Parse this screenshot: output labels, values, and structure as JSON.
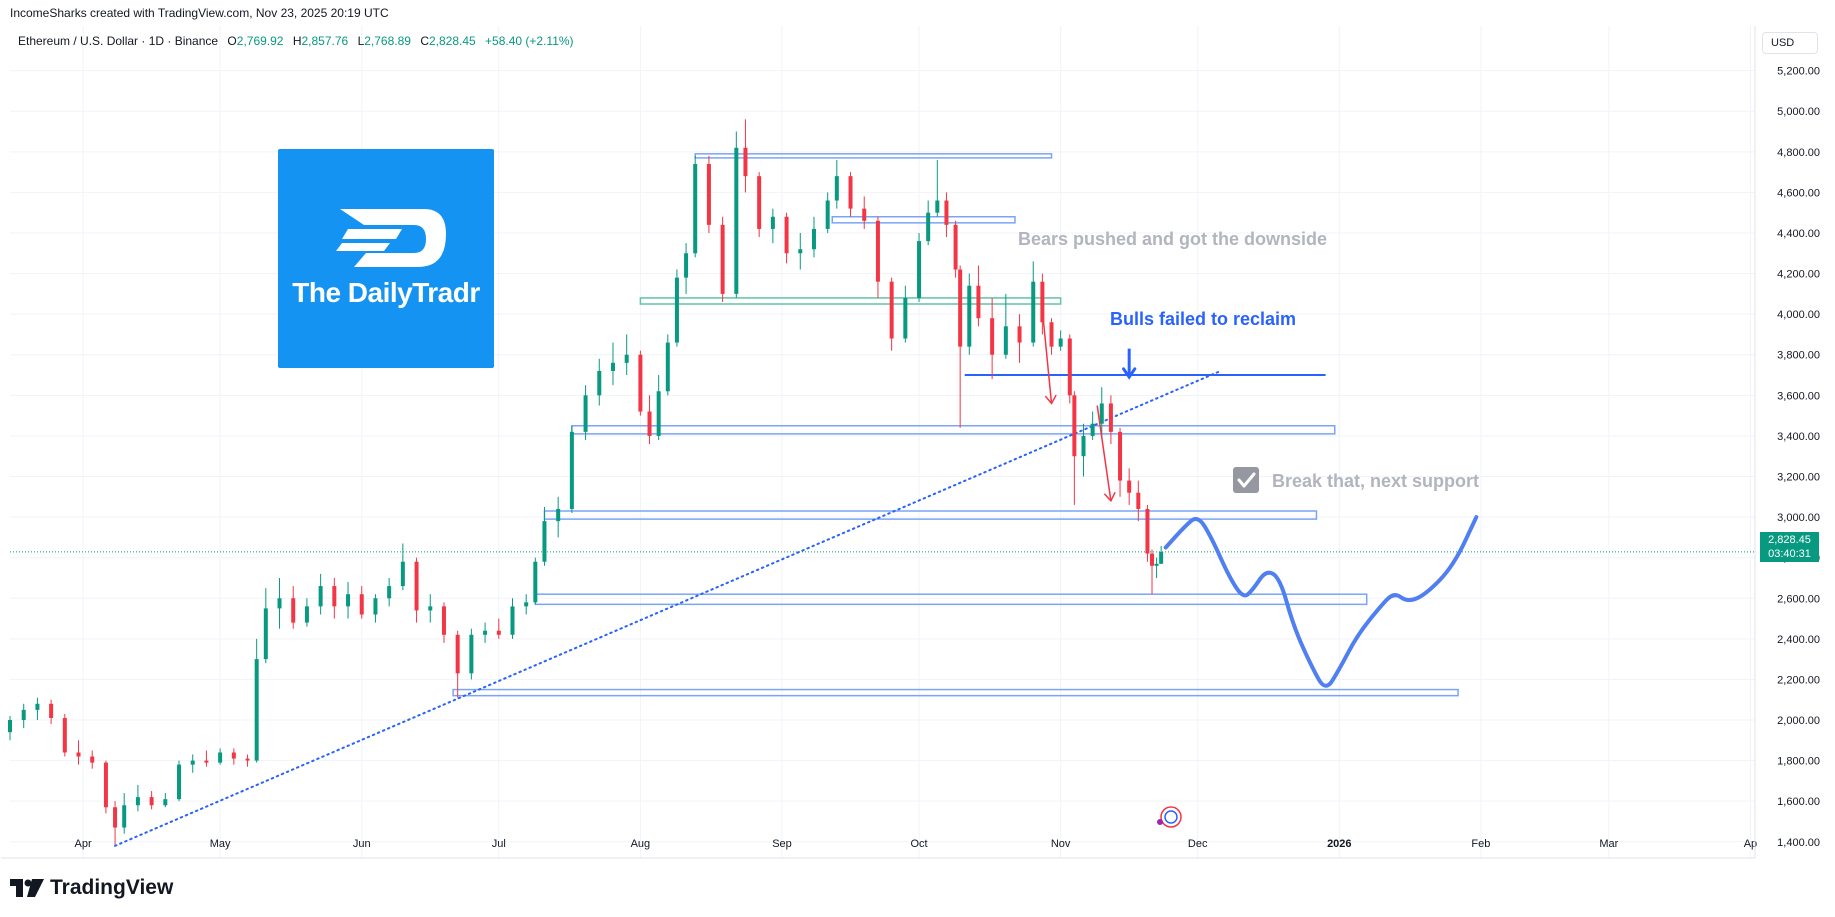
{
  "header": {
    "credit": "IncomeSharks created with TradingView.com, Nov 23, 2025 20:19 UTC"
  },
  "legend": {
    "symbol": "Ethereum / U.S. Dollar · 1D · Binance",
    "open_label": "O",
    "open": "2,769.92",
    "high_label": "H",
    "high": "2,857.76",
    "low_label": "L",
    "low": "2,768.89",
    "close_label": "C",
    "close": "2,828.45",
    "change": "+58.40 (+2.11%)"
  },
  "currency_button": "USD",
  "price_tag": {
    "price": "2,828.45",
    "countdown": "03:40:31"
  },
  "logo": {
    "text": "The DailyTradr"
  },
  "footer": {
    "brand": "TradingView"
  },
  "annotations": {
    "bears": "Bears pushed and got the downside",
    "bulls": "Bulls failed to reclaim",
    "break": "Break that, next support"
  },
  "colors": {
    "up": "#089981",
    "down": "#f23645",
    "zone": "#7ba4f5",
    "zone_green": "#60c4a8",
    "trend": "#2962ff",
    "projection": "#4f7ff0",
    "note_gray": "#b2b5be",
    "note_blue": "#2962ff",
    "arrow_red": "#f23645",
    "logo_bg": "#1493f2"
  },
  "chart_data": {
    "type": "candlestick",
    "title": "Ethereum / U.S. Dollar · 1D · Binance",
    "xlabel": "",
    "ylabel": "",
    "x_ticks": [
      "Apr",
      "May",
      "Jun",
      "Jul",
      "Aug",
      "Sep",
      "Oct",
      "Nov",
      "Dec",
      "2026",
      "Feb",
      "Mar",
      "Ap"
    ],
    "y_ticks": [
      "1,400.00",
      "1,600.00",
      "1,800.00",
      "2,000.00",
      "2,200.00",
      "2,400.00",
      "2,600.00",
      "2,800.00",
      "3,000.00",
      "3,200.00",
      "3,400.00",
      "3,600.00",
      "3,800.00",
      "4,000.00",
      "4,200.00",
      "4,400.00",
      "4,600.00",
      "4,800.00",
      "5,000.00",
      "5,200.00"
    ],
    "y_range": [
      1320,
      5420
    ],
    "x_range": [
      "2025-03-16",
      "2026-04-02"
    ],
    "candles": [
      {
        "d": "2025-03-16",
        "o": 1940,
        "h": 2020,
        "l": 1900,
        "c": 2000
      },
      {
        "d": "2025-03-19",
        "o": 2000,
        "h": 2080,
        "l": 1960,
        "c": 2050
      },
      {
        "d": "2025-03-22",
        "o": 2050,
        "h": 2110,
        "l": 2000,
        "c": 2080
      },
      {
        "d": "2025-03-25",
        "o": 2080,
        "h": 2100,
        "l": 1980,
        "c": 2010
      },
      {
        "d": "2025-03-28",
        "o": 2010,
        "h": 2030,
        "l": 1820,
        "c": 1840
      },
      {
        "d": "2025-03-31",
        "o": 1840,
        "h": 1900,
        "l": 1780,
        "c": 1820
      },
      {
        "d": "2025-04-03",
        "o": 1820,
        "h": 1850,
        "l": 1760,
        "c": 1790
      },
      {
        "d": "2025-04-06",
        "o": 1790,
        "h": 1800,
        "l": 1540,
        "c": 1570
      },
      {
        "d": "2025-04-08",
        "o": 1570,
        "h": 1600,
        "l": 1385,
        "c": 1470
      },
      {
        "d": "2025-04-10",
        "o": 1470,
        "h": 1640,
        "l": 1440,
        "c": 1580
      },
      {
        "d": "2025-04-13",
        "o": 1580,
        "h": 1680,
        "l": 1550,
        "c": 1620
      },
      {
        "d": "2025-04-16",
        "o": 1620,
        "h": 1650,
        "l": 1560,
        "c": 1580
      },
      {
        "d": "2025-04-19",
        "o": 1580,
        "h": 1640,
        "l": 1570,
        "c": 1610
      },
      {
        "d": "2025-04-22",
        "o": 1610,
        "h": 1800,
        "l": 1600,
        "c": 1780
      },
      {
        "d": "2025-04-25",
        "o": 1780,
        "h": 1830,
        "l": 1740,
        "c": 1800
      },
      {
        "d": "2025-04-28",
        "o": 1800,
        "h": 1850,
        "l": 1770,
        "c": 1790
      },
      {
        "d": "2025-05-01",
        "o": 1790,
        "h": 1860,
        "l": 1780,
        "c": 1840
      },
      {
        "d": "2025-05-04",
        "o": 1840,
        "h": 1860,
        "l": 1780,
        "c": 1810
      },
      {
        "d": "2025-05-07",
        "o": 1810,
        "h": 1830,
        "l": 1770,
        "c": 1800
      },
      {
        "d": "2025-05-09",
        "o": 1800,
        "h": 2400,
        "l": 1790,
        "c": 2300
      },
      {
        "d": "2025-05-11",
        "o": 2300,
        "h": 2650,
        "l": 2280,
        "c": 2550
      },
      {
        "d": "2025-05-14",
        "o": 2550,
        "h": 2700,
        "l": 2450,
        "c": 2600
      },
      {
        "d": "2025-05-17",
        "o": 2600,
        "h": 2660,
        "l": 2450,
        "c": 2480
      },
      {
        "d": "2025-05-20",
        "o": 2480,
        "h": 2600,
        "l": 2460,
        "c": 2560
      },
      {
        "d": "2025-05-23",
        "o": 2560,
        "h": 2720,
        "l": 2520,
        "c": 2660
      },
      {
        "d": "2025-05-26",
        "o": 2660,
        "h": 2700,
        "l": 2500,
        "c": 2560
      },
      {
        "d": "2025-05-29",
        "o": 2560,
        "h": 2680,
        "l": 2500,
        "c": 2620
      },
      {
        "d": "2025-06-01",
        "o": 2620,
        "h": 2660,
        "l": 2500,
        "c": 2520
      },
      {
        "d": "2025-06-04",
        "o": 2520,
        "h": 2620,
        "l": 2480,
        "c": 2600
      },
      {
        "d": "2025-06-07",
        "o": 2600,
        "h": 2700,
        "l": 2560,
        "c": 2660
      },
      {
        "d": "2025-06-10",
        "o": 2660,
        "h": 2870,
        "l": 2640,
        "c": 2780
      },
      {
        "d": "2025-06-13",
        "o": 2780,
        "h": 2800,
        "l": 2480,
        "c": 2540
      },
      {
        "d": "2025-06-16",
        "o": 2540,
        "h": 2620,
        "l": 2480,
        "c": 2560
      },
      {
        "d": "2025-06-19",
        "o": 2560,
        "h": 2580,
        "l": 2380,
        "c": 2420
      },
      {
        "d": "2025-06-22",
        "o": 2420,
        "h": 2440,
        "l": 2110,
        "c": 2230
      },
      {
        "d": "2025-06-25",
        "o": 2230,
        "h": 2450,
        "l": 2200,
        "c": 2420
      },
      {
        "d": "2025-06-28",
        "o": 2420,
        "h": 2480,
        "l": 2380,
        "c": 2440
      },
      {
        "d": "2025-07-01",
        "o": 2440,
        "h": 2500,
        "l": 2400,
        "c": 2420
      },
      {
        "d": "2025-07-04",
        "o": 2420,
        "h": 2600,
        "l": 2400,
        "c": 2560
      },
      {
        "d": "2025-07-07",
        "o": 2560,
        "h": 2620,
        "l": 2520,
        "c": 2580
      },
      {
        "d": "2025-07-09",
        "o": 2580,
        "h": 2800,
        "l": 2570,
        "c": 2780
      },
      {
        "d": "2025-07-11",
        "o": 2780,
        "h": 3050,
        "l": 2760,
        "c": 2980
      },
      {
        "d": "2025-07-14",
        "o": 2980,
        "h": 3100,
        "l": 2900,
        "c": 3040
      },
      {
        "d": "2025-07-17",
        "o": 3040,
        "h": 3450,
        "l": 3020,
        "c": 3420
      },
      {
        "d": "2025-07-20",
        "o": 3420,
        "h": 3650,
        "l": 3380,
        "c": 3600
      },
      {
        "d": "2025-07-23",
        "o": 3600,
        "h": 3780,
        "l": 3550,
        "c": 3720
      },
      {
        "d": "2025-07-26",
        "o": 3720,
        "h": 3860,
        "l": 3650,
        "c": 3760
      },
      {
        "d": "2025-07-29",
        "o": 3760,
        "h": 3900,
        "l": 3700,
        "c": 3800
      },
      {
        "d": "2025-08-01",
        "o": 3800,
        "h": 3820,
        "l": 3500,
        "c": 3520
      },
      {
        "d": "2025-08-03",
        "o": 3520,
        "h": 3600,
        "l": 3360,
        "c": 3400
      },
      {
        "d": "2025-08-05",
        "o": 3400,
        "h": 3700,
        "l": 3380,
        "c": 3620
      },
      {
        "d": "2025-08-07",
        "o": 3620,
        "h": 3900,
        "l": 3600,
        "c": 3860
      },
      {
        "d": "2025-08-09",
        "o": 3860,
        "h": 4220,
        "l": 3840,
        "c": 4180
      },
      {
        "d": "2025-08-11",
        "o": 4180,
        "h": 4350,
        "l": 4100,
        "c": 4300
      },
      {
        "d": "2025-08-13",
        "o": 4300,
        "h": 4780,
        "l": 4280,
        "c": 4740
      },
      {
        "d": "2025-08-16",
        "o": 4740,
        "h": 4780,
        "l": 4400,
        "c": 4440
      },
      {
        "d": "2025-08-19",
        "o": 4440,
        "h": 4480,
        "l": 4060,
        "c": 4100
      },
      {
        "d": "2025-08-22",
        "o": 4100,
        "h": 4900,
        "l": 4080,
        "c": 4820
      },
      {
        "d": "2025-08-24",
        "o": 4820,
        "h": 4960,
        "l": 4600,
        "c": 4680
      },
      {
        "d": "2025-08-27",
        "o": 4680,
        "h": 4700,
        "l": 4380,
        "c": 4420
      },
      {
        "d": "2025-08-30",
        "o": 4420,
        "h": 4520,
        "l": 4350,
        "c": 4480
      },
      {
        "d": "2025-09-02",
        "o": 4480,
        "h": 4500,
        "l": 4250,
        "c": 4300
      },
      {
        "d": "2025-09-05",
        "o": 4300,
        "h": 4400,
        "l": 4220,
        "c": 4320
      },
      {
        "d": "2025-09-08",
        "o": 4320,
        "h": 4480,
        "l": 4280,
        "c": 4420
      },
      {
        "d": "2025-09-11",
        "o": 4420,
        "h": 4600,
        "l": 4400,
        "c": 4560
      },
      {
        "d": "2025-09-13",
        "o": 4560,
        "h": 4760,
        "l": 4520,
        "c": 4680
      },
      {
        "d": "2025-09-16",
        "o": 4680,
        "h": 4700,
        "l": 4480,
        "c": 4520
      },
      {
        "d": "2025-09-19",
        "o": 4520,
        "h": 4580,
        "l": 4420,
        "c": 4460
      },
      {
        "d": "2025-09-22",
        "o": 4460,
        "h": 4480,
        "l": 4080,
        "c": 4160
      },
      {
        "d": "2025-09-25",
        "o": 4160,
        "h": 4180,
        "l": 3820,
        "c": 3880
      },
      {
        "d": "2025-09-28",
        "o": 3880,
        "h": 4140,
        "l": 3860,
        "c": 4080
      },
      {
        "d": "2025-10-01",
        "o": 4080,
        "h": 4400,
        "l": 4060,
        "c": 4360
      },
      {
        "d": "2025-10-03",
        "o": 4360,
        "h": 4560,
        "l": 4340,
        "c": 4500
      },
      {
        "d": "2025-10-05",
        "o": 4500,
        "h": 4760,
        "l": 4480,
        "c": 4560
      },
      {
        "d": "2025-10-07",
        "o": 4560,
        "h": 4600,
        "l": 4380,
        "c": 4440
      },
      {
        "d": "2025-10-09",
        "o": 4440,
        "h": 4460,
        "l": 4180,
        "c": 4220
      },
      {
        "d": "2025-10-10",
        "o": 4220,
        "h": 4240,
        "l": 3440,
        "c": 3840
      },
      {
        "d": "2025-10-12",
        "o": 3840,
        "h": 4200,
        "l": 3800,
        "c": 4140
      },
      {
        "d": "2025-10-14",
        "o": 4140,
        "h": 4240,
        "l": 3940,
        "c": 3980
      },
      {
        "d": "2025-10-17",
        "o": 3980,
        "h": 4080,
        "l": 3680,
        "c": 3800
      },
      {
        "d": "2025-10-20",
        "o": 3800,
        "h": 4100,
        "l": 3780,
        "c": 3940
      },
      {
        "d": "2025-10-23",
        "o": 3940,
        "h": 4000,
        "l": 3760,
        "c": 3860
      },
      {
        "d": "2025-10-26",
        "o": 3860,
        "h": 4260,
        "l": 3840,
        "c": 4160
      },
      {
        "d": "2025-10-28",
        "o": 4160,
        "h": 4200,
        "l": 3900,
        "c": 3960
      },
      {
        "d": "2025-10-30",
        "o": 3960,
        "h": 3980,
        "l": 3800,
        "c": 3840
      },
      {
        "d": "2025-11-01",
        "o": 3840,
        "h": 3920,
        "l": 3820,
        "c": 3880
      },
      {
        "d": "2025-11-03",
        "o": 3880,
        "h": 3900,
        "l": 3560,
        "c": 3600
      },
      {
        "d": "2025-11-04",
        "o": 3600,
        "h": 3620,
        "l": 3060,
        "c": 3300
      },
      {
        "d": "2025-11-06",
        "o": 3300,
        "h": 3460,
        "l": 3200,
        "c": 3400
      },
      {
        "d": "2025-11-08",
        "o": 3400,
        "h": 3520,
        "l": 3380,
        "c": 3460
      },
      {
        "d": "2025-11-10",
        "o": 3460,
        "h": 3640,
        "l": 3400,
        "c": 3560
      },
      {
        "d": "2025-11-12",
        "o": 3560,
        "h": 3600,
        "l": 3360,
        "c": 3420
      },
      {
        "d": "2025-11-14",
        "o": 3420,
        "h": 3440,
        "l": 3100,
        "c": 3180
      },
      {
        "d": "2025-11-16",
        "o": 3180,
        "h": 3240,
        "l": 3060,
        "c": 3120
      },
      {
        "d": "2025-11-18",
        "o": 3120,
        "h": 3180,
        "l": 2980,
        "c": 3040
      },
      {
        "d": "2025-11-20",
        "o": 3040,
        "h": 3060,
        "l": 2780,
        "c": 2820
      },
      {
        "d": "2025-11-21",
        "o": 2820,
        "h": 2840,
        "l": 2620,
        "c": 2760
      },
      {
        "d": "2025-11-22",
        "o": 2760,
        "h": 2800,
        "l": 2700,
        "c": 2770
      },
      {
        "d": "2025-11-23",
        "o": 2769.92,
        "h": 2857.76,
        "l": 2768.89,
        "c": 2828.45
      }
    ],
    "zones": [
      {
        "from": "2025-08-13",
        "to": "2025-10-30",
        "low": 4770,
        "high": 4790,
        "color": "blue"
      },
      {
        "from": "2025-09-12",
        "to": "2025-10-22",
        "low": 4450,
        "high": 4480,
        "color": "blue"
      },
      {
        "from": "2025-08-01",
        "to": "2025-11-01",
        "low": 4050,
        "high": 4080,
        "color": "green"
      },
      {
        "from": "2025-07-17",
        "to": "2025-12-31",
        "low": 3410,
        "high": 3450,
        "color": "blue"
      },
      {
        "from": "2025-07-11",
        "to": "2025-12-27",
        "low": 2990,
        "high": 3030,
        "color": "blue"
      },
      {
        "from": "2025-07-09",
        "to": "2026-01-07",
        "low": 2570,
        "high": 2620,
        "color": "blue"
      },
      {
        "from": "2025-06-21",
        "to": "2026-01-27",
        "low": 2120,
        "high": 2150,
        "color": "blue"
      }
    ],
    "resistance_line": {
      "from": "2025-10-11",
      "to": "2025-12-29",
      "value": 3700
    },
    "trendline": {
      "from": "2025-04-08",
      "from_value": 1380,
      "to": "2025-12-06",
      "to_value": 3720
    },
    "current_price": 2828.45,
    "projection": [
      {
        "d": "2025-11-24",
        "v": 2850
      },
      {
        "d": "2025-11-28",
        "v": 2950
      },
      {
        "d": "2025-12-01",
        "v": 3010
      },
      {
        "d": "2025-12-04",
        "v": 2900
      },
      {
        "d": "2025-12-08",
        "v": 2700
      },
      {
        "d": "2025-12-11",
        "v": 2600
      },
      {
        "d": "2025-12-13",
        "v": 2640
      },
      {
        "d": "2025-12-16",
        "v": 2740
      },
      {
        "d": "2025-12-19",
        "v": 2700
      },
      {
        "d": "2025-12-22",
        "v": 2460
      },
      {
        "d": "2025-12-26",
        "v": 2260
      },
      {
        "d": "2025-12-29",
        "v": 2140
      },
      {
        "d": "2026-01-01",
        "v": 2250
      },
      {
        "d": "2026-01-05",
        "v": 2420
      },
      {
        "d": "2026-01-10",
        "v": 2560
      },
      {
        "d": "2026-01-13",
        "v": 2630
      },
      {
        "d": "2026-01-16",
        "v": 2580
      },
      {
        "d": "2026-01-20",
        "v": 2620
      },
      {
        "d": "2026-01-26",
        "v": 2760
      },
      {
        "d": "2026-01-31",
        "v": 3000
      }
    ],
    "arrows": [
      {
        "from_d": "2025-10-28",
        "from_v": 4020,
        "to_d": "2025-10-30",
        "to_v": 3560,
        "color": "red"
      },
      {
        "from_d": "2025-11-09",
        "from_v": 3550,
        "to_d": "2025-11-12",
        "to_v": 3080,
        "color": "red"
      },
      {
        "from_d": "2025-11-16",
        "from_v": 3830,
        "to_d": "2025-11-16",
        "to_v": 3690,
        "color": "blue"
      }
    ],
    "grid": true,
    "legend_position": "top-left"
  }
}
